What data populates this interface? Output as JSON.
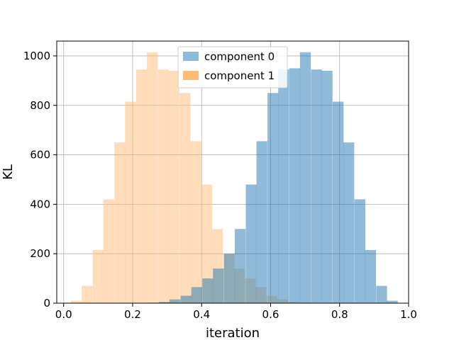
{
  "chart_data": {
    "type": "bar",
    "subtype": "overlaid-histogram",
    "title": "",
    "xlabel": "iteration",
    "ylabel": "KL",
    "xlim": [
      -0.02,
      1.0
    ],
    "ylim": [
      0,
      1060
    ],
    "xticks": [
      0.0,
      0.2,
      0.4,
      0.6,
      0.8,
      1.0
    ],
    "xtick_labels": [
      "0.0",
      "0.2",
      "0.4",
      "0.6",
      "0.8",
      "1.0"
    ],
    "yticks": [
      0,
      200,
      400,
      600,
      800,
      1000
    ],
    "ytick_labels": [
      "0",
      "200",
      "400",
      "600",
      "800",
      "1000"
    ],
    "grid": true,
    "legend_position": "top-center",
    "series": [
      {
        "name": "component 1",
        "color": "#ffbb78",
        "alpha": 0.5,
        "bin_width": 0.0315,
        "bins": [
          0.021,
          0.052,
          0.084,
          0.115,
          0.147,
          0.178,
          0.21,
          0.241,
          0.273,
          0.304,
          0.336,
          0.367,
          0.399,
          0.43,
          0.462,
          0.493,
          0.525,
          0.556,
          0.588,
          0.619,
          0.651,
          0.682,
          0.714
        ],
        "counts": [
          10,
          70,
          215,
          420,
          650,
          815,
          945,
          1015,
          945,
          940,
          850,
          655,
          480,
          300,
          200,
          140,
          100,
          65,
          30,
          15,
          5,
          2,
          1
        ]
      },
      {
        "name": "component 0",
        "color": "#1f77b4",
        "alpha": 0.5,
        "bin_width": 0.0315,
        "bins": [
          0.244,
          0.276,
          0.307,
          0.339,
          0.37,
          0.402,
          0.433,
          0.465,
          0.496,
          0.528,
          0.559,
          0.591,
          0.622,
          0.654,
          0.685,
          0.717,
          0.748,
          0.78,
          0.811,
          0.843,
          0.874,
          0.906,
          0.937
        ],
        "counts": [
          2,
          5,
          15,
          30,
          65,
          100,
          140,
          200,
          300,
          480,
          655,
          850,
          945,
          950,
          1015,
          945,
          940,
          815,
          650,
          420,
          215,
          70,
          10
        ]
      }
    ]
  }
}
